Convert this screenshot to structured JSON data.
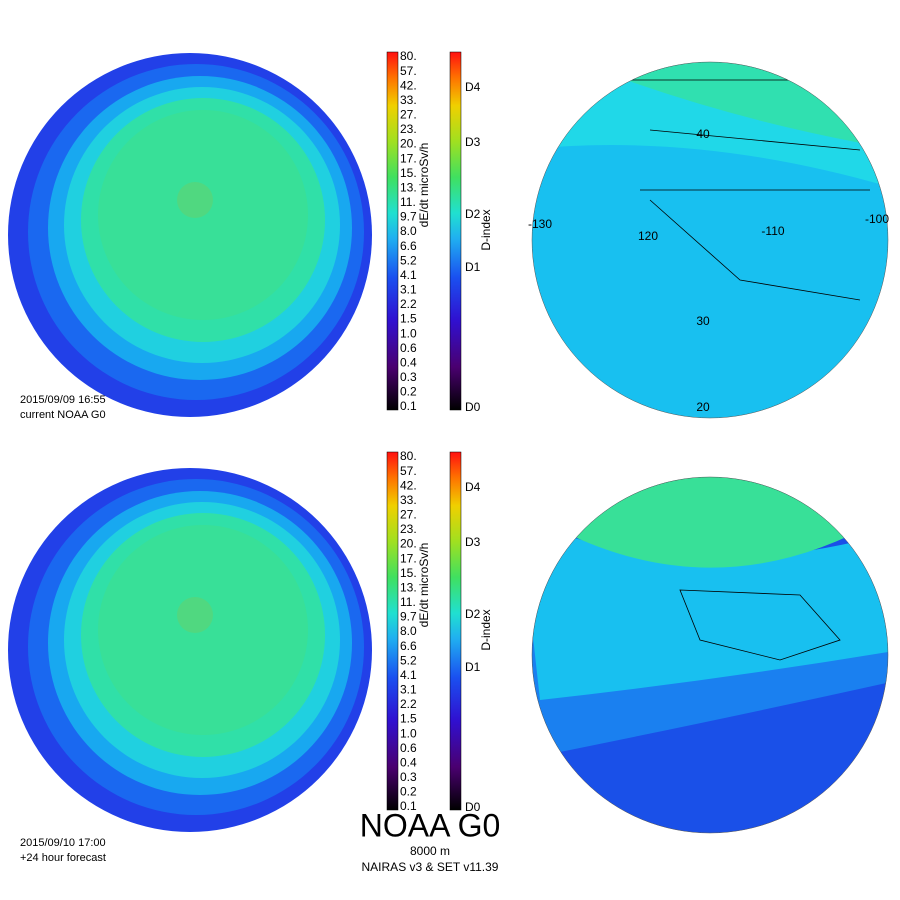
{
  "panels": [
    {
      "timestamp": "2015/09/09 16:55",
      "caption": "current NOAA G0"
    },
    {
      "timestamp": "2015/09/10 17:00",
      "caption": "+24 hour forecast"
    }
  ],
  "dose_scale": {
    "title": "dE/dt microSv/h",
    "labels": [
      "80.",
      "57.",
      "42.",
      "33.",
      "27.",
      "23.",
      "20.",
      "17.",
      "15.",
      "13.",
      "11.",
      "9.7",
      "8.0",
      "6.6",
      "5.2",
      "4.1",
      "3.1",
      "2.2",
      "1.5",
      "1.0",
      "0.6",
      "0.4",
      "0.3",
      "0.2",
      "0.1"
    ]
  },
  "d_index_scale": {
    "title": "D-index",
    "labels": [
      "D4",
      "D3",
      "D2",
      "D1",
      "D0"
    ]
  },
  "graticule_labels": [
    "40",
    "-130",
    "120",
    "-110",
    "-100",
    "30",
    "20"
  ],
  "footer": {
    "title": "NOAA G0",
    "altitude": "8000 m",
    "version": "NAIRAS v3 & SET v11.39"
  }
}
